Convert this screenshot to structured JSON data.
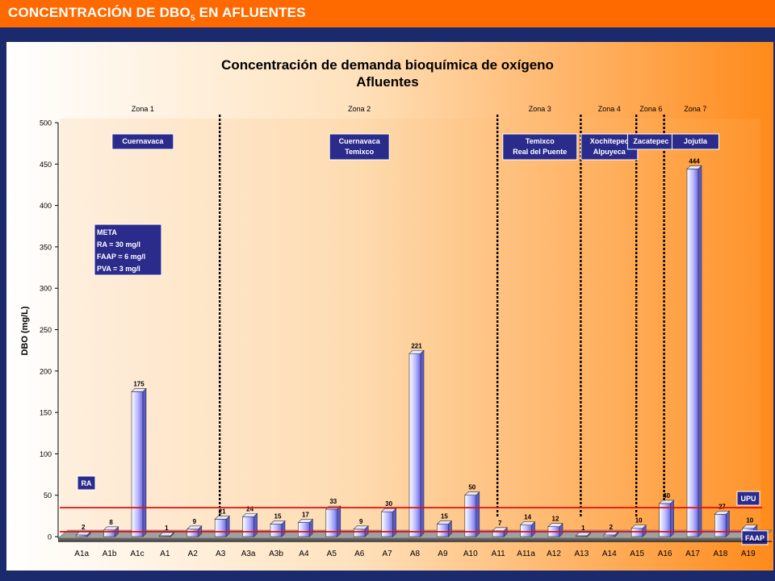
{
  "header": {
    "title_pre": "CONCENTRACIÓN DE DBO",
    "title_sub": "5",
    "title_post": " EN AFLUENTES"
  },
  "chart_data": {
    "type": "bar",
    "title": "Concentración de demanda bioquímica de oxígeno",
    "subtitle": "Afluentes",
    "ylabel": "DBO (mg/L)",
    "ylim": [
      0,
      500
    ],
    "yticks": [
      0,
      50,
      100,
      150,
      200,
      250,
      300,
      350,
      400,
      450,
      500
    ],
    "grid": false,
    "categories": [
      "A1a",
      "A1b",
      "A1c",
      "A1",
      "A2",
      "A3",
      "A3a",
      "A3b",
      "A4",
      "A5",
      "A6",
      "A7",
      "A8",
      "A9",
      "A10",
      "A11",
      "A11a",
      "A12",
      "A13",
      "A14",
      "A15",
      "A16",
      "A17",
      "A18",
      "A19"
    ],
    "values": [
      2,
      8,
      175,
      1,
      9,
      21,
      24,
      15,
      17,
      33,
      9,
      30,
      221,
      15,
      50,
      7,
      14,
      12,
      1,
      2,
      10,
      40,
      444,
      27,
      10
    ],
    "value_labels": [
      "2",
      "8",
      "175",
      "1",
      "9",
      "21",
      "24",
      "15",
      "17",
      "33",
      "9",
      "30",
      "221",
      "15",
      "50",
      "7",
      "14",
      "12",
      "1",
      "2",
      "10",
      "40",
      "444",
      "27",
      "10"
    ],
    "zones": [
      "Zona 1",
      "Zona 2",
      "Zona 3",
      "Zona 4",
      "Zona 6",
      "Zona 7"
    ],
    "zone_boxes": [
      {
        "lines": [
          "Cuernavaca"
        ]
      },
      {
        "lines": [
          "Cuernavaca",
          "Temixco"
        ]
      },
      {
        "lines": [
          "Temixco",
          "Real del Puente"
        ]
      },
      {
        "lines": [
          "Xochitepec",
          "Alpuyeca"
        ]
      },
      {
        "lines": [
          "Zacatepec"
        ]
      },
      {
        "lines": [
          "Jojutla"
        ]
      }
    ],
    "meta_box": [
      "META",
      "RA = 30 mg/l",
      "FAAP = 6 mg/l",
      "PVA = 3 mg/l"
    ],
    "reference_lines": [
      {
        "label": "UPU",
        "value": 35
      },
      {
        "label": "FAAP",
        "value": 6
      }
    ],
    "ra_label": "RA",
    "colors": {
      "accent": "#ff6a00",
      "navy": "#1a2a6c",
      "label_box": "#2b2b8c",
      "ref_line": "#e01010",
      "bar_light": "#ffffff",
      "bar_mid": "#8c8cff"
    }
  }
}
